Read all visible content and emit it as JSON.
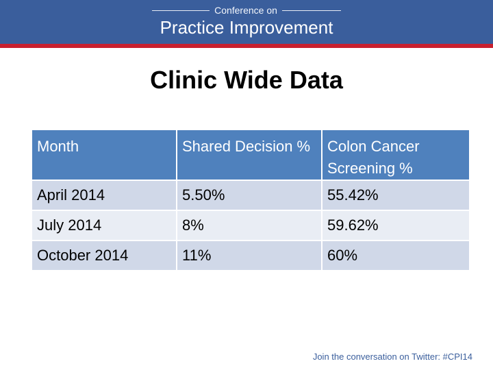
{
  "header": {
    "conference_on": "Conference on",
    "title": "Practice Improvement",
    "banner_color": "#3a5e9c",
    "stripe_color": "#c8202f"
  },
  "slide": {
    "title": "Clinic Wide Data"
  },
  "table": {
    "headers": [
      "Month",
      "Shared Decision %",
      "Colon Cancer Screening %"
    ],
    "rows": [
      [
        "April 2014",
        "5.50%",
        "55.42%"
      ],
      [
        "July 2014",
        "8%",
        "59.62%"
      ],
      [
        "October 2014",
        "11%",
        "60%"
      ]
    ],
    "header_color": "#4f81bd",
    "row_colors": [
      "#d0d8e8",
      "#e9edf4"
    ]
  },
  "footer": {
    "text": "Join the conversation on Twitter: #CPI14"
  }
}
